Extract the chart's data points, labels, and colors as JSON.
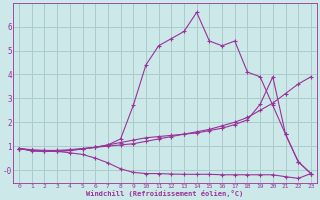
{
  "bg_color": "#cce8e8",
  "grid_color": "#aacccc",
  "line_color": "#993399",
  "xlabel": "Windchill (Refroidissement éolien,°C)",
  "xlim": [
    -0.5,
    23.5
  ],
  "ylim": [
    -0.55,
    7.0
  ],
  "yticks": [
    0,
    1,
    2,
    3,
    4,
    5,
    6
  ],
  "ytick_labels": [
    "-0",
    "1",
    "2",
    "3",
    "4",
    "5",
    "6"
  ],
  "xticks": [
    0,
    1,
    2,
    3,
    4,
    5,
    6,
    7,
    8,
    9,
    10,
    11,
    12,
    13,
    14,
    15,
    16,
    17,
    18,
    19,
    20,
    21,
    22,
    23
  ],
  "series": [
    {
      "x": [
        0,
        1,
        2,
        3,
        4,
        5,
        6,
        7,
        8,
        9,
        10,
        11,
        12,
        13,
        14,
        15,
        16,
        17,
        18,
        19,
        20,
        21,
        22,
        23
      ],
      "y": [
        0.9,
        0.85,
        0.82,
        0.82,
        0.85,
        0.9,
        0.95,
        1.0,
        1.05,
        1.1,
        1.2,
        1.3,
        1.4,
        1.5,
        1.6,
        1.7,
        1.85,
        2.0,
        2.2,
        2.5,
        2.8,
        3.2,
        3.6,
        3.9
      ]
    },
    {
      "x": [
        0,
        1,
        2,
        3,
        4,
        5,
        6,
        7,
        8,
        9,
        10,
        11,
        12,
        13,
        14,
        15,
        16,
        17,
        18,
        19,
        20,
        21,
        22,
        23
      ],
      "y": [
        0.9,
        0.8,
        0.78,
        0.78,
        0.82,
        0.88,
        0.95,
        1.05,
        1.3,
        2.7,
        4.4,
        5.2,
        5.5,
        5.8,
        6.6,
        5.4,
        5.2,
        5.4,
        4.1,
        3.9,
        2.7,
        1.5,
        0.35,
        -0.15
      ]
    },
    {
      "x": [
        0,
        1,
        2,
        3,
        4,
        5,
        6,
        7,
        8,
        9,
        10,
        11,
        12,
        13,
        14,
        15,
        16,
        17,
        18,
        19,
        20,
        21,
        22,
        23
      ],
      "y": [
        0.9,
        0.82,
        0.78,
        0.78,
        0.82,
        0.88,
        0.95,
        1.05,
        1.15,
        1.25,
        1.35,
        1.4,
        1.45,
        1.5,
        1.55,
        1.65,
        1.75,
        1.9,
        2.1,
        2.75,
        3.9,
        1.5,
        0.35,
        -0.15
      ]
    },
    {
      "x": [
        0,
        1,
        2,
        3,
        4,
        5,
        6,
        7,
        8,
        9,
        10,
        11,
        12,
        13,
        14,
        15,
        16,
        17,
        18,
        19,
        20,
        21,
        22,
        23
      ],
      "y": [
        0.9,
        0.82,
        0.78,
        0.78,
        0.72,
        0.65,
        0.5,
        0.3,
        0.05,
        -0.1,
        -0.15,
        -0.15,
        -0.17,
        -0.18,
        -0.18,
        -0.18,
        -0.2,
        -0.2,
        -0.2,
        -0.2,
        -0.2,
        -0.28,
        -0.35,
        -0.15
      ]
    }
  ]
}
